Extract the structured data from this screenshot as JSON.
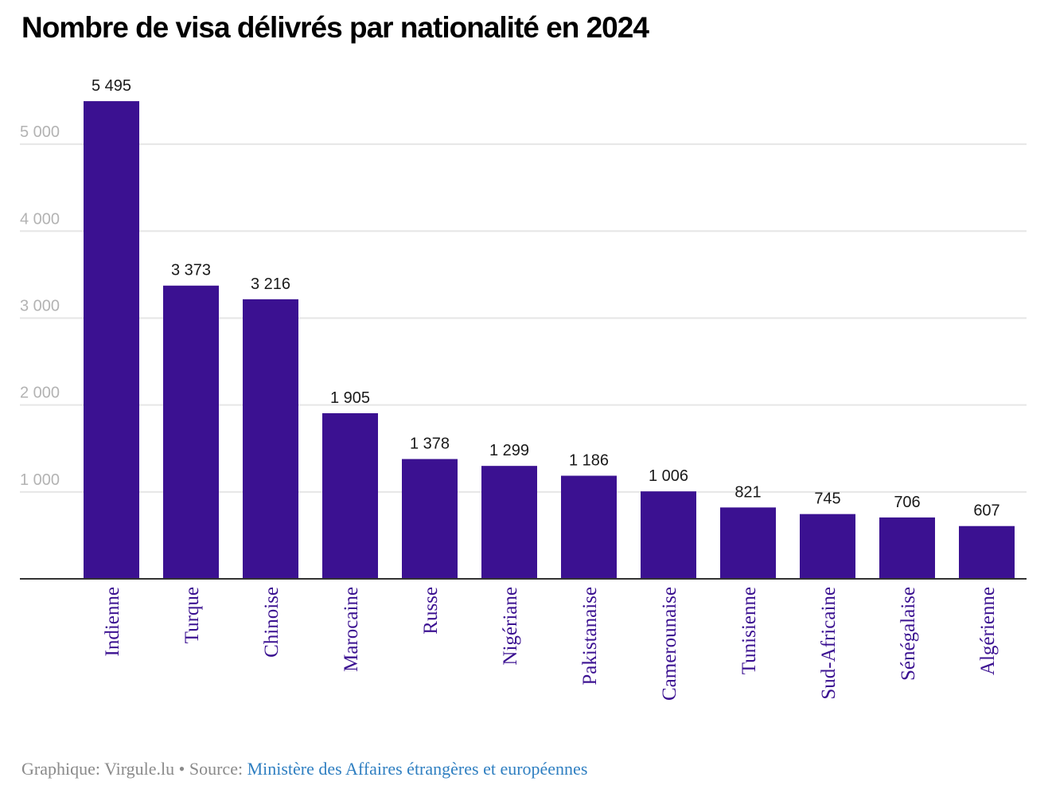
{
  "title": "Nombre de visa délivrés par nationalité en 2024",
  "footer": {
    "credit": "Graphique: Virgule.lu",
    "separator": " • ",
    "source_label": "Source: ",
    "source_name": "Ministère des Affaires étrangères et européennes"
  },
  "colors": {
    "bar": "#3b1191",
    "category_label": "#3b1191",
    "gridline": "#e6e6e6",
    "baseline": "#333333",
    "tick_label": "#b3b3b3",
    "source_link": "#2f7fc1"
  },
  "chart_data": {
    "type": "bar",
    "title": "Nombre de visa délivrés par nationalité en 2024",
    "xlabel": "",
    "ylabel": "",
    "categories": [
      "Indienne",
      "Turque",
      "Chinoise",
      "Marocaine",
      "Russe",
      "Nigériane",
      "Pakistanaise",
      "Camerounaise",
      "Tunisienne",
      "Sud-Africaine",
      "Sénégalaise",
      "Algérienne"
    ],
    "values": [
      5495,
      3373,
      3216,
      1905,
      1378,
      1299,
      1186,
      1006,
      821,
      745,
      706,
      607
    ],
    "value_labels": [
      "5 495",
      "3 373",
      "3 216",
      "1 905",
      "1 378",
      "1 299",
      "1 186",
      "1 006",
      "821",
      "745",
      "706",
      "607"
    ],
    "yticks": [
      1000,
      2000,
      3000,
      4000,
      5000
    ],
    "ytick_labels": [
      "1 000",
      "2 000",
      "3 000",
      "4 000",
      "5 000"
    ],
    "ylim": [
      0,
      5495
    ],
    "grid": true,
    "legend": "none"
  }
}
